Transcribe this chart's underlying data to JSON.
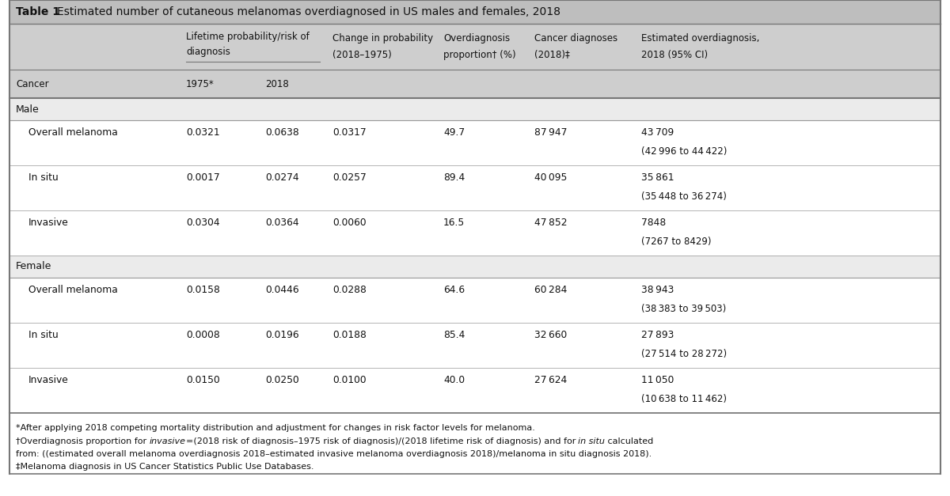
{
  "title_bold": "Table 1",
  "title_rest": "Estimated number of cutaneous melanomas overdiagnosed in US males and females, 2018",
  "sections": [
    {
      "section_label": "Male",
      "rows": [
        {
          "cancer": "Overall melanoma",
          "lp1975": "0.0321",
          "lp2018": "0.0638",
          "change": "0.0317",
          "od_pct": "49.7",
          "diagnoses": "87 947",
          "est_od": "43 709",
          "est_od_ci": "(42 996 to 44 422)"
        },
        {
          "cancer": "In situ",
          "lp1975": "0.0017",
          "lp2018": "0.0274",
          "change": "0.0257",
          "od_pct": "89.4",
          "diagnoses": "40 095",
          "est_od": "35 861",
          "est_od_ci": "(35 448 to 36 274)"
        },
        {
          "cancer": "Invasive",
          "lp1975": "0.0304",
          "lp2018": "0.0364",
          "change": "0.0060",
          "od_pct": "16.5",
          "diagnoses": "47 852",
          "est_od": "7848",
          "est_od_ci": "(7267 to 8429)"
        }
      ]
    },
    {
      "section_label": "Female",
      "rows": [
        {
          "cancer": "Overall melanoma",
          "lp1975": "0.0158",
          "lp2018": "0.0446",
          "change": "0.0288",
          "od_pct": "64.6",
          "diagnoses": "60 284",
          "est_od": "38 943",
          "est_od_ci": "(38 383 to 39 503)"
        },
        {
          "cancer": "In situ",
          "lp1975": "0.0008",
          "lp2018": "0.0196",
          "change": "0.0188",
          "od_pct": "85.4",
          "diagnoses": "32 660",
          "est_od": "27 893",
          "est_od_ci": "(27 514 to 28 272)"
        },
        {
          "cancer": "Invasive",
          "lp1975": "0.0150",
          "lp2018": "0.0250",
          "change": "0.0100",
          "od_pct": "40.0",
          "diagnoses": "27 624",
          "est_od": "11 050",
          "est_od_ci": "(10 638 to 11 462)"
        }
      ]
    }
  ],
  "footnote1": "*After applying 2018 competing mortality distribution and adjustment for changes in risk factor levels for melanoma.",
  "footnote2_pre": "†Overdiagnosis proportion for ",
  "footnote2_it1": "invasive",
  "footnote2_mid": "=(2018 risk of diagnosis–1975 risk of diagnosis)/(2018 lifetime risk of diagnosis) and for ",
  "footnote2_it2": "in situ",
  "footnote2_post": " calculated from: ((estimated overall melanoma overdiagnosis 2018–estimated invasive melanoma overdiagnosis 2018)/melanoma in situ diagnosis 2018).",
  "footnote3": "‡Melanoma diagnosis in US Cancer Statistics Public Use Databases.",
  "bg_color": "#FFFFFF",
  "header_bg": "#CECECE",
  "section_bg": "#EBEBEB",
  "title_bg": "#BEBEBE",
  "line_color": "#999999",
  "dark_line": "#777777",
  "text_color": "#111111"
}
